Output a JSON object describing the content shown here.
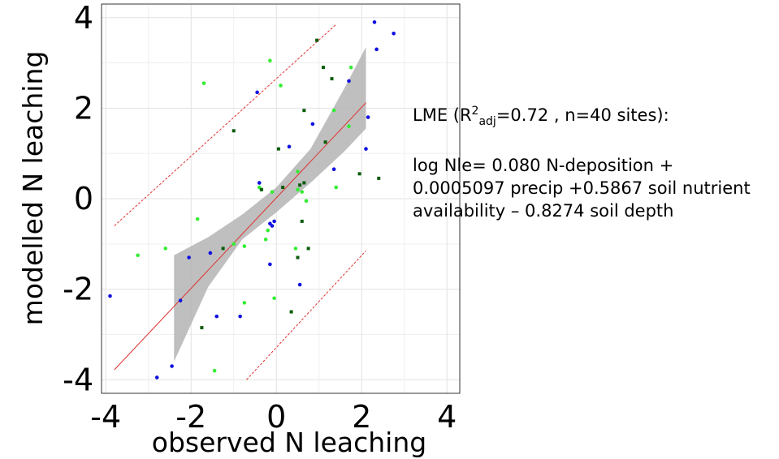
{
  "chart_data": {
    "type": "scatter",
    "xlabel": "observed N leaching",
    "ylabel": "modelled N leaching",
    "xlim": [
      -4.1,
      4.3
    ],
    "ylim": [
      -4.3,
      4.3
    ],
    "xticks": [
      "-4",
      "-2",
      "0",
      "2",
      "4"
    ],
    "yticks": [
      "4",
      "2",
      "0",
      "-2",
      "-4"
    ],
    "grid": true,
    "colors": {
      "group_a": "#1010e0",
      "group_b": "#33ee33",
      "group_c": "#0a5c0a",
      "fit": "#e03030",
      "band": "#b4b4b4"
    },
    "regression_line": {
      "x": [
        -3.8,
        2.1
      ],
      "y": [
        -3.78,
        2.12
      ]
    },
    "prediction_upper": {
      "x": [
        -3.8,
        1.4
      ],
      "y": [
        -0.6,
        3.85
      ]
    },
    "prediction_lower": {
      "x": [
        -0.7,
        2.1
      ],
      "y": [
        -4.0,
        -1.15
      ]
    },
    "confidence_band": {
      "x": [
        -2.4,
        -1.6,
        -0.8,
        0,
        0.8,
        1.6,
        2.1
      ],
      "upper": [
        -1.25,
        -0.85,
        -0.35,
        0.25,
        1.1,
        2.45,
        3.35
      ],
      "lower": [
        -3.6,
        -1.95,
        -0.9,
        -0.3,
        0.35,
        1.05,
        1.55
      ]
    },
    "series": [
      {
        "group": "group_a",
        "x": [
          -3.9,
          -2.8,
          -2.45,
          -2.25,
          -2.05,
          -1.55,
          -1.4,
          -0.85,
          -0.45,
          -0.4,
          -0.15,
          -0.15,
          -0.1,
          -0.05,
          0.3,
          0.55,
          0.85,
          1.35,
          1.7,
          2.1,
          2.15,
          2.3,
          2.35,
          2.75
        ],
        "y": [
          -2.15,
          -3.95,
          -3.7,
          -2.25,
          -1.3,
          -1.2,
          -2.6,
          -2.6,
          2.35,
          0.35,
          -0.55,
          -1.45,
          -0.6,
          -0.5,
          1.15,
          -1.9,
          1.65,
          0.65,
          2.6,
          1.1,
          1.8,
          3.9,
          3.3,
          3.65
        ]
      },
      {
        "group": "group_b",
        "x": [
          -3.25,
          -2.6,
          -1.85,
          -1.7,
          -1.45,
          -1.0,
          -0.75,
          -0.75,
          -0.4,
          -0.35,
          -0.25,
          -0.2,
          -0.15,
          -0.1,
          -0.05,
          0.1,
          0.45,
          0.5,
          0.5,
          0.6,
          0.7,
          1.35,
          1.4,
          1.7,
          1.75
        ],
        "y": [
          -1.25,
          -1.1,
          -0.45,
          2.55,
          -3.8,
          -1.0,
          -1.05,
          -2.3,
          0.25,
          0.2,
          -0.9,
          -0.7,
          3.05,
          0.15,
          -2.2,
          2.5,
          -1.1,
          0.6,
          0.2,
          0.15,
          -0.05,
          1.95,
          0.25,
          1.6,
          2.9
        ]
      },
      {
        "group": "group_c",
        "x": [
          -1.75,
          -1.25,
          -1.0,
          -0.35,
          0.05,
          0.15,
          0.35,
          0.5,
          0.55,
          0.6,
          0.65,
          0.65,
          0.75,
          0.95,
          1.1,
          1.15,
          1.3,
          1.95,
          2.4
        ],
        "y": [
          -2.85,
          -1.1,
          1.5,
          0.2,
          1.1,
          0.25,
          -2.5,
          -1.3,
          0.3,
          -0.5,
          1.95,
          0.35,
          -1.1,
          3.5,
          2.9,
          1.25,
          2.65,
          0.55,
          0.45
        ]
      }
    ]
  },
  "annotation": {
    "title_prefix": "LME  (R",
    "sup": "2",
    "sub": "adj",
    "title_suffix": "=0.72 , n=40 sites):",
    "equation": "log Nle= 0.080 N-deposition + 0.0005097 precip +0.5867 soil nutrient availability – 0.8274 soil depth"
  }
}
